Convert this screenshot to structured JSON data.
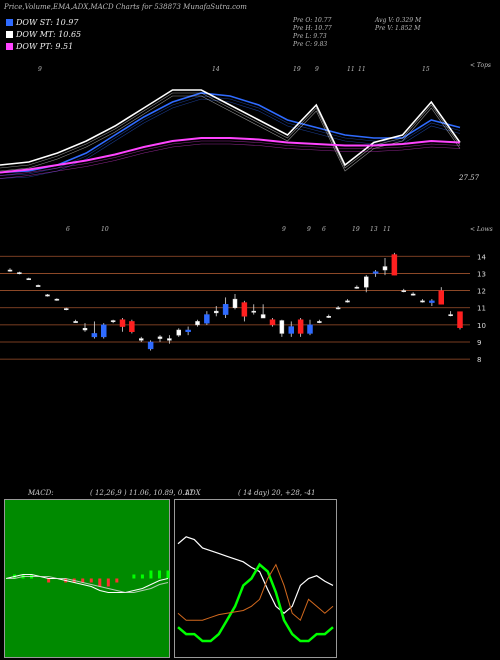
{
  "header": {
    "title": "Price,Volume,EMA,ADX,MACD Charts for 538873 MunafaSutra.com"
  },
  "legend": [
    {
      "label": "DOW ST: 10.97",
      "color": "#2f6bff"
    },
    {
      "label": "DOW MT: 10.65",
      "color": "#ffffff"
    },
    {
      "label": "DOW PT: 9.51",
      "color": "#ff44ff"
    }
  ],
  "stats": {
    "open": "Pre   O: 10.77",
    "high": "Pre   H: 10.77",
    "low": "Pre   L: 9.73",
    "close": "Pre   C: 9.83",
    "avg_vol": "Avg V: 0.329 M",
    "pre_vol": "Pre   V: 1.852  M"
  },
  "upper_panel": {
    "corner_label": "< Tops",
    "last_value": "27.57",
    "markers": [
      "9",
      "14",
      "19",
      "9",
      "11",
      "11",
      "15"
    ]
  },
  "price_panel": {
    "corner_label": "< Lows",
    "markers": [
      "6",
      "10",
      "9",
      "9",
      "6",
      "19",
      "13",
      "11"
    ],
    "y_ticks": [
      "14",
      "13",
      "12",
      "11",
      "10",
      "9",
      "8"
    ]
  },
  "macd": {
    "label": "MACD:",
    "params": "( 12,26,9 ) 11.06, 10.89, 0.17"
  },
  "adx": {
    "label": "ADX",
    "params": "( 14  day) 20,  +28,  -41"
  },
  "chart_data": {
    "type": "candlestick",
    "title": "Price,Volume,EMA,ADX,MACD Charts for 538873 MunafaSutra.com",
    "y_ticks": [
      14,
      13,
      12,
      11,
      10,
      9,
      8
    ],
    "ylim": [
      7.6,
      14.6
    ],
    "candles": [
      {
        "o": 13.2,
        "h": 13.3,
        "l": 13.1,
        "c": 13.15,
        "dir": "flat"
      },
      {
        "o": 13.05,
        "h": 13.1,
        "l": 12.95,
        "c": 13.0,
        "dir": "flat"
      },
      {
        "o": 12.7,
        "h": 12.75,
        "l": 12.65,
        "c": 12.7,
        "dir": "flat"
      },
      {
        "o": 12.3,
        "h": 12.35,
        "l": 12.25,
        "c": 12.3,
        "dir": "flat"
      },
      {
        "o": 11.7,
        "h": 11.8,
        "l": 11.65,
        "c": 11.75,
        "dir": "flat"
      },
      {
        "o": 11.5,
        "h": 11.55,
        "l": 11.4,
        "c": 11.45,
        "dir": "flat"
      },
      {
        "o": 10.9,
        "h": 11.0,
        "l": 10.85,
        "c": 10.95,
        "dir": "flat"
      },
      {
        "o": 10.2,
        "h": 10.3,
        "l": 10.15,
        "c": 10.2,
        "dir": "flat"
      },
      {
        "o": 9.7,
        "h": 10.1,
        "l": 9.6,
        "c": 9.8,
        "dir": "flat"
      },
      {
        "o": 9.3,
        "h": 10.2,
        "l": 9.2,
        "c": 9.5,
        "dir": "up"
      },
      {
        "o": 9.3,
        "h": 10.1,
        "l": 9.2,
        "c": 10.0,
        "dir": "up"
      },
      {
        "o": 10.25,
        "h": 10.3,
        "l": 10.1,
        "c": 10.2,
        "dir": "flat"
      },
      {
        "o": 10.3,
        "h": 10.4,
        "l": 9.6,
        "c": 9.9,
        "dir": "down"
      },
      {
        "o": 10.2,
        "h": 10.3,
        "l": 9.5,
        "c": 9.6,
        "dir": "down"
      },
      {
        "o": 9.2,
        "h": 9.3,
        "l": 9.0,
        "c": 9.1,
        "dir": "flat"
      },
      {
        "o": 8.6,
        "h": 9.1,
        "l": 8.5,
        "c": 9.0,
        "dir": "up"
      },
      {
        "o": 9.2,
        "h": 9.4,
        "l": 9.0,
        "c": 9.3,
        "dir": "flat"
      },
      {
        "o": 9.1,
        "h": 9.4,
        "l": 8.9,
        "c": 9.2,
        "dir": "flat"
      },
      {
        "o": 9.4,
        "h": 9.8,
        "l": 9.3,
        "c": 9.7,
        "dir": "flat"
      },
      {
        "o": 9.6,
        "h": 9.9,
        "l": 9.4,
        "c": 9.7,
        "dir": "up"
      },
      {
        "o": 10.0,
        "h": 10.3,
        "l": 9.9,
        "c": 10.2,
        "dir": "flat"
      },
      {
        "o": 10.1,
        "h": 10.8,
        "l": 10.0,
        "c": 10.6,
        "dir": "up"
      },
      {
        "o": 10.7,
        "h": 11.1,
        "l": 10.5,
        "c": 10.8,
        "dir": "flat"
      },
      {
        "o": 10.6,
        "h": 11.6,
        "l": 10.4,
        "c": 11.2,
        "dir": "up"
      },
      {
        "o": 11.5,
        "h": 11.8,
        "l": 10.9,
        "c": 11.0,
        "dir": "flat"
      },
      {
        "o": 11.3,
        "h": 11.4,
        "l": 10.2,
        "c": 10.5,
        "dir": "down"
      },
      {
        "o": 10.8,
        "h": 11.2,
        "l": 10.6,
        "c": 10.8,
        "dir": "flat"
      },
      {
        "o": 10.4,
        "h": 11.2,
        "l": 10.4,
        "c": 10.6,
        "dir": "flat"
      },
      {
        "o": 10.3,
        "h": 10.4,
        "l": 9.9,
        "c": 10.0,
        "dir": "down"
      },
      {
        "o": 10.25,
        "h": 10.3,
        "l": 9.3,
        "c": 9.5,
        "dir": "flat"
      },
      {
        "o": 9.5,
        "h": 10.2,
        "l": 9.3,
        "c": 9.9,
        "dir": "up"
      },
      {
        "o": 10.3,
        "h": 10.4,
        "l": 9.3,
        "c": 9.5,
        "dir": "down"
      },
      {
        "o": 9.5,
        "h": 10.3,
        "l": 9.4,
        "c": 10.0,
        "dir": "up"
      },
      {
        "o": 10.2,
        "h": 10.3,
        "l": 10.1,
        "c": 10.2,
        "dir": "flat"
      },
      {
        "o": 10.5,
        "h": 10.6,
        "l": 10.4,
        "c": 10.5,
        "dir": "flat"
      },
      {
        "o": 11.0,
        "h": 11.1,
        "l": 10.9,
        "c": 11.0,
        "dir": "flat"
      },
      {
        "o": 11.4,
        "h": 11.5,
        "l": 11.3,
        "c": 11.4,
        "dir": "flat"
      },
      {
        "o": 12.2,
        "h": 12.3,
        "l": 12.1,
        "c": 12.2,
        "dir": "flat"
      },
      {
        "o": 12.8,
        "h": 12.9,
        "l": 11.9,
        "c": 12.2,
        "dir": "flat"
      },
      {
        "o": 13.1,
        "h": 13.2,
        "l": 12.8,
        "c": 13.0,
        "dir": "up"
      },
      {
        "o": 13.4,
        "h": 13.9,
        "l": 12.9,
        "c": 13.2,
        "dir": "flat"
      },
      {
        "o": 14.1,
        "h": 14.2,
        "l": 12.9,
        "c": 12.9,
        "dir": "down"
      },
      {
        "o": 12.0,
        "h": 12.1,
        "l": 11.9,
        "c": 12.0,
        "dir": "flat"
      },
      {
        "o": 11.8,
        "h": 11.9,
        "l": 11.7,
        "c": 11.8,
        "dir": "flat"
      },
      {
        "o": 11.4,
        "h": 11.5,
        "l": 11.3,
        "c": 11.4,
        "dir": "flat"
      },
      {
        "o": 11.3,
        "h": 11.5,
        "l": 11.1,
        "c": 11.4,
        "dir": "up"
      },
      {
        "o": 12.0,
        "h": 12.2,
        "l": 11.2,
        "c": 11.2,
        "dir": "down"
      },
      {
        "o": 10.6,
        "h": 10.8,
        "l": 10.5,
        "c": 10.6,
        "dir": "flat"
      },
      {
        "o": 10.77,
        "h": 10.77,
        "l": 9.73,
        "c": 9.83,
        "dir": "down"
      }
    ],
    "ema_upper": {
      "series": [
        {
          "color": "#2f6bff",
          "values": [
            0.25,
            0.26,
            0.3,
            0.38,
            0.5,
            0.62,
            0.72,
            0.78,
            0.76,
            0.7,
            0.6,
            0.55,
            0.5,
            0.48,
            0.48,
            0.6,
            0.55
          ]
        },
        {
          "color": "#ffffff",
          "values": [
            0.3,
            0.32,
            0.38,
            0.46,
            0.56,
            0.68,
            0.8,
            0.8,
            0.7,
            0.6,
            0.5,
            0.7,
            0.3,
            0.45,
            0.5,
            0.72,
            0.45
          ]
        },
        {
          "color": "#ff44ff",
          "values": [
            0.25,
            0.27,
            0.3,
            0.33,
            0.37,
            0.42,
            0.46,
            0.48,
            0.48,
            0.47,
            0.45,
            0.44,
            0.43,
            0.43,
            0.44,
            0.46,
            0.45
          ]
        }
      ]
    },
    "macd": {
      "macd_line": [
        0.2,
        0.21,
        0.22,
        0.22,
        0.21,
        0.2,
        0.2,
        0.19,
        0.18,
        0.17,
        0.16,
        0.14,
        0.13,
        0.13,
        0.13,
        0.14,
        0.15,
        0.17,
        0.19,
        0.2
      ],
      "signal_line": [
        0.2,
        0.2,
        0.21,
        0.21,
        0.21,
        0.21,
        0.2,
        0.2,
        0.19,
        0.18,
        0.17,
        0.16,
        0.15,
        0.14,
        0.13,
        0.13,
        0.14,
        0.15,
        0.17,
        0.18
      ]
    },
    "adx": {
      "adx_line": [
        0.75,
        0.8,
        0.78,
        0.72,
        0.7,
        0.68,
        0.66,
        0.64,
        0.62,
        0.58,
        0.55,
        0.42,
        0.3,
        0.25,
        0.3,
        0.45,
        0.5,
        0.52,
        0.48,
        0.45
      ],
      "plus_di": [
        0.15,
        0.1,
        0.1,
        0.05,
        0.05,
        0.1,
        0.2,
        0.3,
        0.45,
        0.5,
        0.6,
        0.55,
        0.4,
        0.2,
        0.1,
        0.05,
        0.05,
        0.1,
        0.1,
        0.15
      ],
      "minus_di": [
        0.25,
        0.2,
        0.2,
        0.2,
        0.22,
        0.24,
        0.25,
        0.26,
        0.27,
        0.3,
        0.35,
        0.5,
        0.6,
        0.45,
        0.25,
        0.2,
        0.35,
        0.3,
        0.25,
        0.3
      ]
    }
  }
}
